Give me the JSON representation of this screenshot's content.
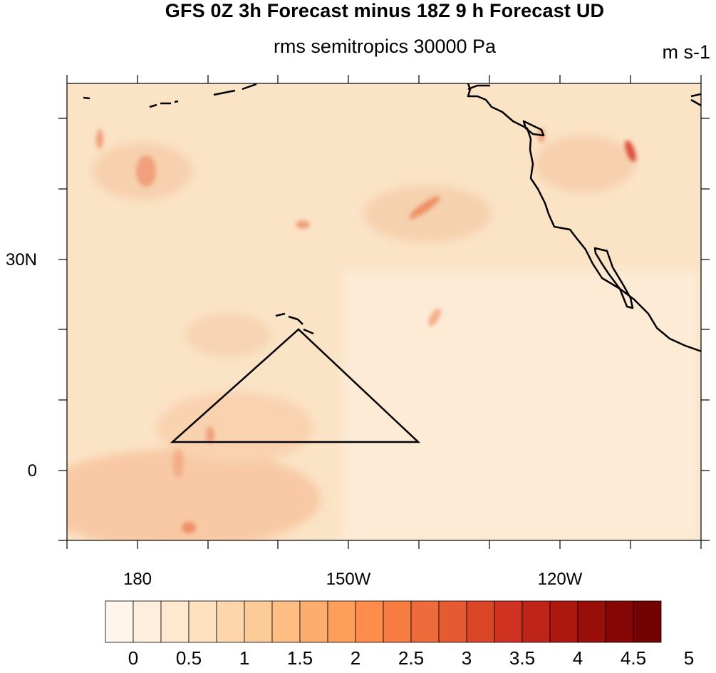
{
  "map": {
    "title": "GFS 0Z 3h Forecast minus 18Z 9 h Forecast UD",
    "subtitle": "rms semitropics 30000 Pa",
    "units": "m s-1",
    "lon_labels": [
      "180",
      "150W",
      "120W"
    ],
    "lat_labels": [
      "30N",
      "0"
    ],
    "extent": {
      "lon_min": 170,
      "lon_max": 260,
      "lat_min": -10,
      "lat_max": 55
    },
    "region_outline": {
      "shape": "triangle",
      "vertices_lonlat": [
        [
          175,
          4
        ],
        [
          203,
          20
        ],
        [
          210,
          4
        ]
      ]
    },
    "colors": {
      "field_background": "#fbe3c6",
      "coastline": "#000000"
    }
  },
  "colorbar": {
    "labels": [
      "0",
      "0.5",
      "1",
      "1.5",
      "2",
      "2.5",
      "3",
      "3.5",
      "4",
      "4.5",
      "5"
    ],
    "colors": [
      "#fff5eb",
      "#feefdd",
      "#fee9d0",
      "#fee2c0",
      "#fdd6ac",
      "#fdcb98",
      "#fdbd83",
      "#fdae6e",
      "#fd9f5b",
      "#fc8d4d",
      "#f67c41",
      "#ee6b3b",
      "#e55a32",
      "#db4629",
      "#cf3220",
      "#be2418",
      "#ac1710",
      "#990d0a",
      "#860605",
      "#730202"
    ]
  }
}
